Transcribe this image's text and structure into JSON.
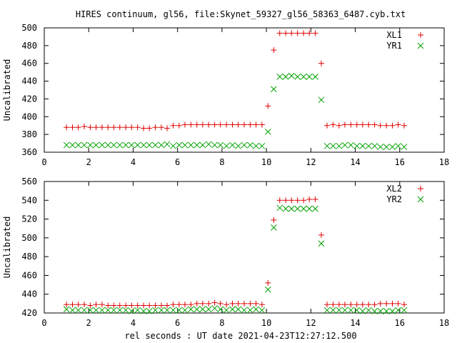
{
  "title": "HIRES continuum, gl56, file:Skynet_59327_gl56_58363_6487.cyb.txt",
  "xlabel": "rel seconds : UT date 2021-04-23T12:27:12.500",
  "colors": {
    "red": "#e00000",
    "green": "#00a000"
  },
  "chart_data": [
    {
      "type": "scatter",
      "ylabel": "Uncalibrated",
      "xlim": [
        0,
        18
      ],
      "ylim": [
        360,
        500
      ],
      "xticks": [
        0,
        2,
        4,
        6,
        8,
        10,
        12,
        14,
        16,
        18
      ],
      "yticks": [
        360,
        380,
        400,
        420,
        440,
        460,
        480,
        500
      ],
      "legend_position": "top-right",
      "grid": false,
      "series": [
        {
          "name": "XL1",
          "marker": "plus",
          "color": "#e00000",
          "x": [
            1.0,
            1.27,
            1.53,
            1.8,
            2.07,
            2.33,
            2.6,
            2.87,
            3.13,
            3.4,
            3.67,
            3.93,
            4.2,
            4.47,
            4.73,
            5.0,
            5.27,
            5.53,
            5.8,
            6.07,
            6.33,
            6.6,
            6.87,
            7.13,
            7.4,
            7.67,
            7.93,
            8.2,
            8.47,
            8.73,
            9.0,
            9.27,
            9.53,
            9.8,
            10.07,
            10.33,
            10.6,
            10.87,
            11.13,
            11.4,
            11.67,
            11.93,
            12.2,
            12.47,
            12.73,
            13.0,
            13.27,
            13.53,
            13.8,
            14.07,
            14.33,
            14.6,
            14.87,
            15.13,
            15.4,
            15.67,
            15.93,
            16.2
          ],
          "y": [
            388,
            388,
            388,
            389,
            388,
            388,
            388,
            388,
            388,
            388,
            388,
            388,
            388,
            387,
            387,
            388,
            388,
            387,
            390,
            390,
            391,
            391,
            391,
            391,
            391,
            391,
            391,
            391,
            391,
            391,
            391,
            391,
            391,
            391,
            412,
            475,
            494,
            494,
            494,
            494,
            494,
            494,
            494,
            460,
            390,
            391,
            390,
            391,
            391,
            391,
            391,
            391,
            391,
            390,
            390,
            390,
            391,
            390
          ]
        },
        {
          "name": "YR1",
          "marker": "cross",
          "color": "#00a000",
          "x": [
            1.0,
            1.27,
            1.53,
            1.8,
            2.07,
            2.33,
            2.6,
            2.87,
            3.13,
            3.4,
            3.67,
            3.93,
            4.2,
            4.47,
            4.73,
            5.0,
            5.27,
            5.53,
            5.8,
            6.07,
            6.33,
            6.6,
            6.87,
            7.13,
            7.4,
            7.67,
            7.93,
            8.2,
            8.47,
            8.73,
            9.0,
            9.27,
            9.53,
            9.8,
            10.07,
            10.33,
            10.6,
            10.87,
            11.13,
            11.4,
            11.67,
            11.93,
            12.2,
            12.47,
            12.73,
            13.0,
            13.27,
            13.53,
            13.8,
            14.07,
            14.33,
            14.6,
            14.87,
            15.13,
            15.4,
            15.67,
            15.93,
            16.2
          ],
          "y": [
            368,
            368,
            368,
            368,
            368,
            368,
            368,
            368,
            368,
            368,
            368,
            368,
            368,
            368,
            368,
            368,
            368,
            369,
            367,
            368,
            368,
            368,
            368,
            368,
            369,
            368,
            368,
            367,
            368,
            367,
            368,
            368,
            367,
            367,
            383,
            431,
            445,
            445,
            446,
            445,
            445,
            445,
            445,
            419,
            367,
            367,
            367,
            368,
            368,
            367,
            367,
            367,
            367,
            366,
            366,
            366,
            367,
            366
          ]
        }
      ]
    },
    {
      "type": "scatter",
      "ylabel": "Uncalibrated",
      "xlim": [
        0,
        18
      ],
      "ylim": [
        420,
        560
      ],
      "xticks": [
        0,
        2,
        4,
        6,
        8,
        10,
        12,
        14,
        16,
        18
      ],
      "yticks": [
        420,
        440,
        460,
        480,
        500,
        520,
        540,
        560
      ],
      "legend_position": "top-right",
      "grid": false,
      "series": [
        {
          "name": "XL2",
          "marker": "plus",
          "color": "#e00000",
          "x": [
            1.0,
            1.27,
            1.53,
            1.8,
            2.07,
            2.33,
            2.6,
            2.87,
            3.13,
            3.4,
            3.67,
            3.93,
            4.2,
            4.47,
            4.73,
            5.0,
            5.27,
            5.53,
            5.8,
            6.07,
            6.33,
            6.6,
            6.87,
            7.13,
            7.4,
            7.67,
            7.93,
            8.2,
            8.47,
            8.73,
            9.0,
            9.27,
            9.53,
            9.8,
            10.07,
            10.33,
            10.6,
            10.87,
            11.13,
            11.4,
            11.67,
            11.93,
            12.2,
            12.47,
            12.73,
            13.0,
            13.27,
            13.53,
            13.8,
            14.07,
            14.33,
            14.6,
            14.87,
            15.13,
            15.4,
            15.67,
            15.93,
            16.2
          ],
          "y": [
            429,
            429,
            429,
            429,
            428,
            429,
            429,
            428,
            428,
            428,
            428,
            428,
            428,
            428,
            428,
            428,
            428,
            428,
            429,
            429,
            429,
            429,
            430,
            430,
            430,
            431,
            430,
            429,
            430,
            430,
            430,
            430,
            430,
            429,
            452,
            519,
            540,
            540,
            540,
            540,
            540,
            541,
            541,
            503,
            429,
            429,
            429,
            429,
            429,
            429,
            429,
            429,
            429,
            430,
            430,
            430,
            430,
            429
          ]
        },
        {
          "name": "YR2",
          "marker": "cross",
          "color": "#00a000",
          "x": [
            1.0,
            1.27,
            1.53,
            1.8,
            2.07,
            2.33,
            2.6,
            2.87,
            3.13,
            3.4,
            3.67,
            3.93,
            4.2,
            4.47,
            4.73,
            5.0,
            5.27,
            5.53,
            5.8,
            6.07,
            6.33,
            6.6,
            6.87,
            7.13,
            7.4,
            7.67,
            7.93,
            8.2,
            8.47,
            8.73,
            9.0,
            9.27,
            9.53,
            9.8,
            10.07,
            10.33,
            10.6,
            10.87,
            11.13,
            11.4,
            11.67,
            11.93,
            12.2,
            12.47,
            12.73,
            13.0,
            13.27,
            13.53,
            13.8,
            14.07,
            14.33,
            14.6,
            14.87,
            15.13,
            15.4,
            15.67,
            15.93,
            16.2
          ],
          "y": [
            424,
            423,
            423,
            423,
            423,
            423,
            423,
            423,
            423,
            423,
            423,
            422,
            423,
            422,
            422,
            423,
            423,
            423,
            423,
            423,
            423,
            424,
            424,
            424,
            424,
            425,
            424,
            423,
            424,
            424,
            423,
            423,
            424,
            423,
            445,
            511,
            532,
            531,
            531,
            531,
            531,
            531,
            531,
            494,
            423,
            423,
            423,
            423,
            423,
            423,
            422,
            423,
            422,
            422,
            422,
            422,
            423,
            423
          ]
        }
      ]
    }
  ]
}
